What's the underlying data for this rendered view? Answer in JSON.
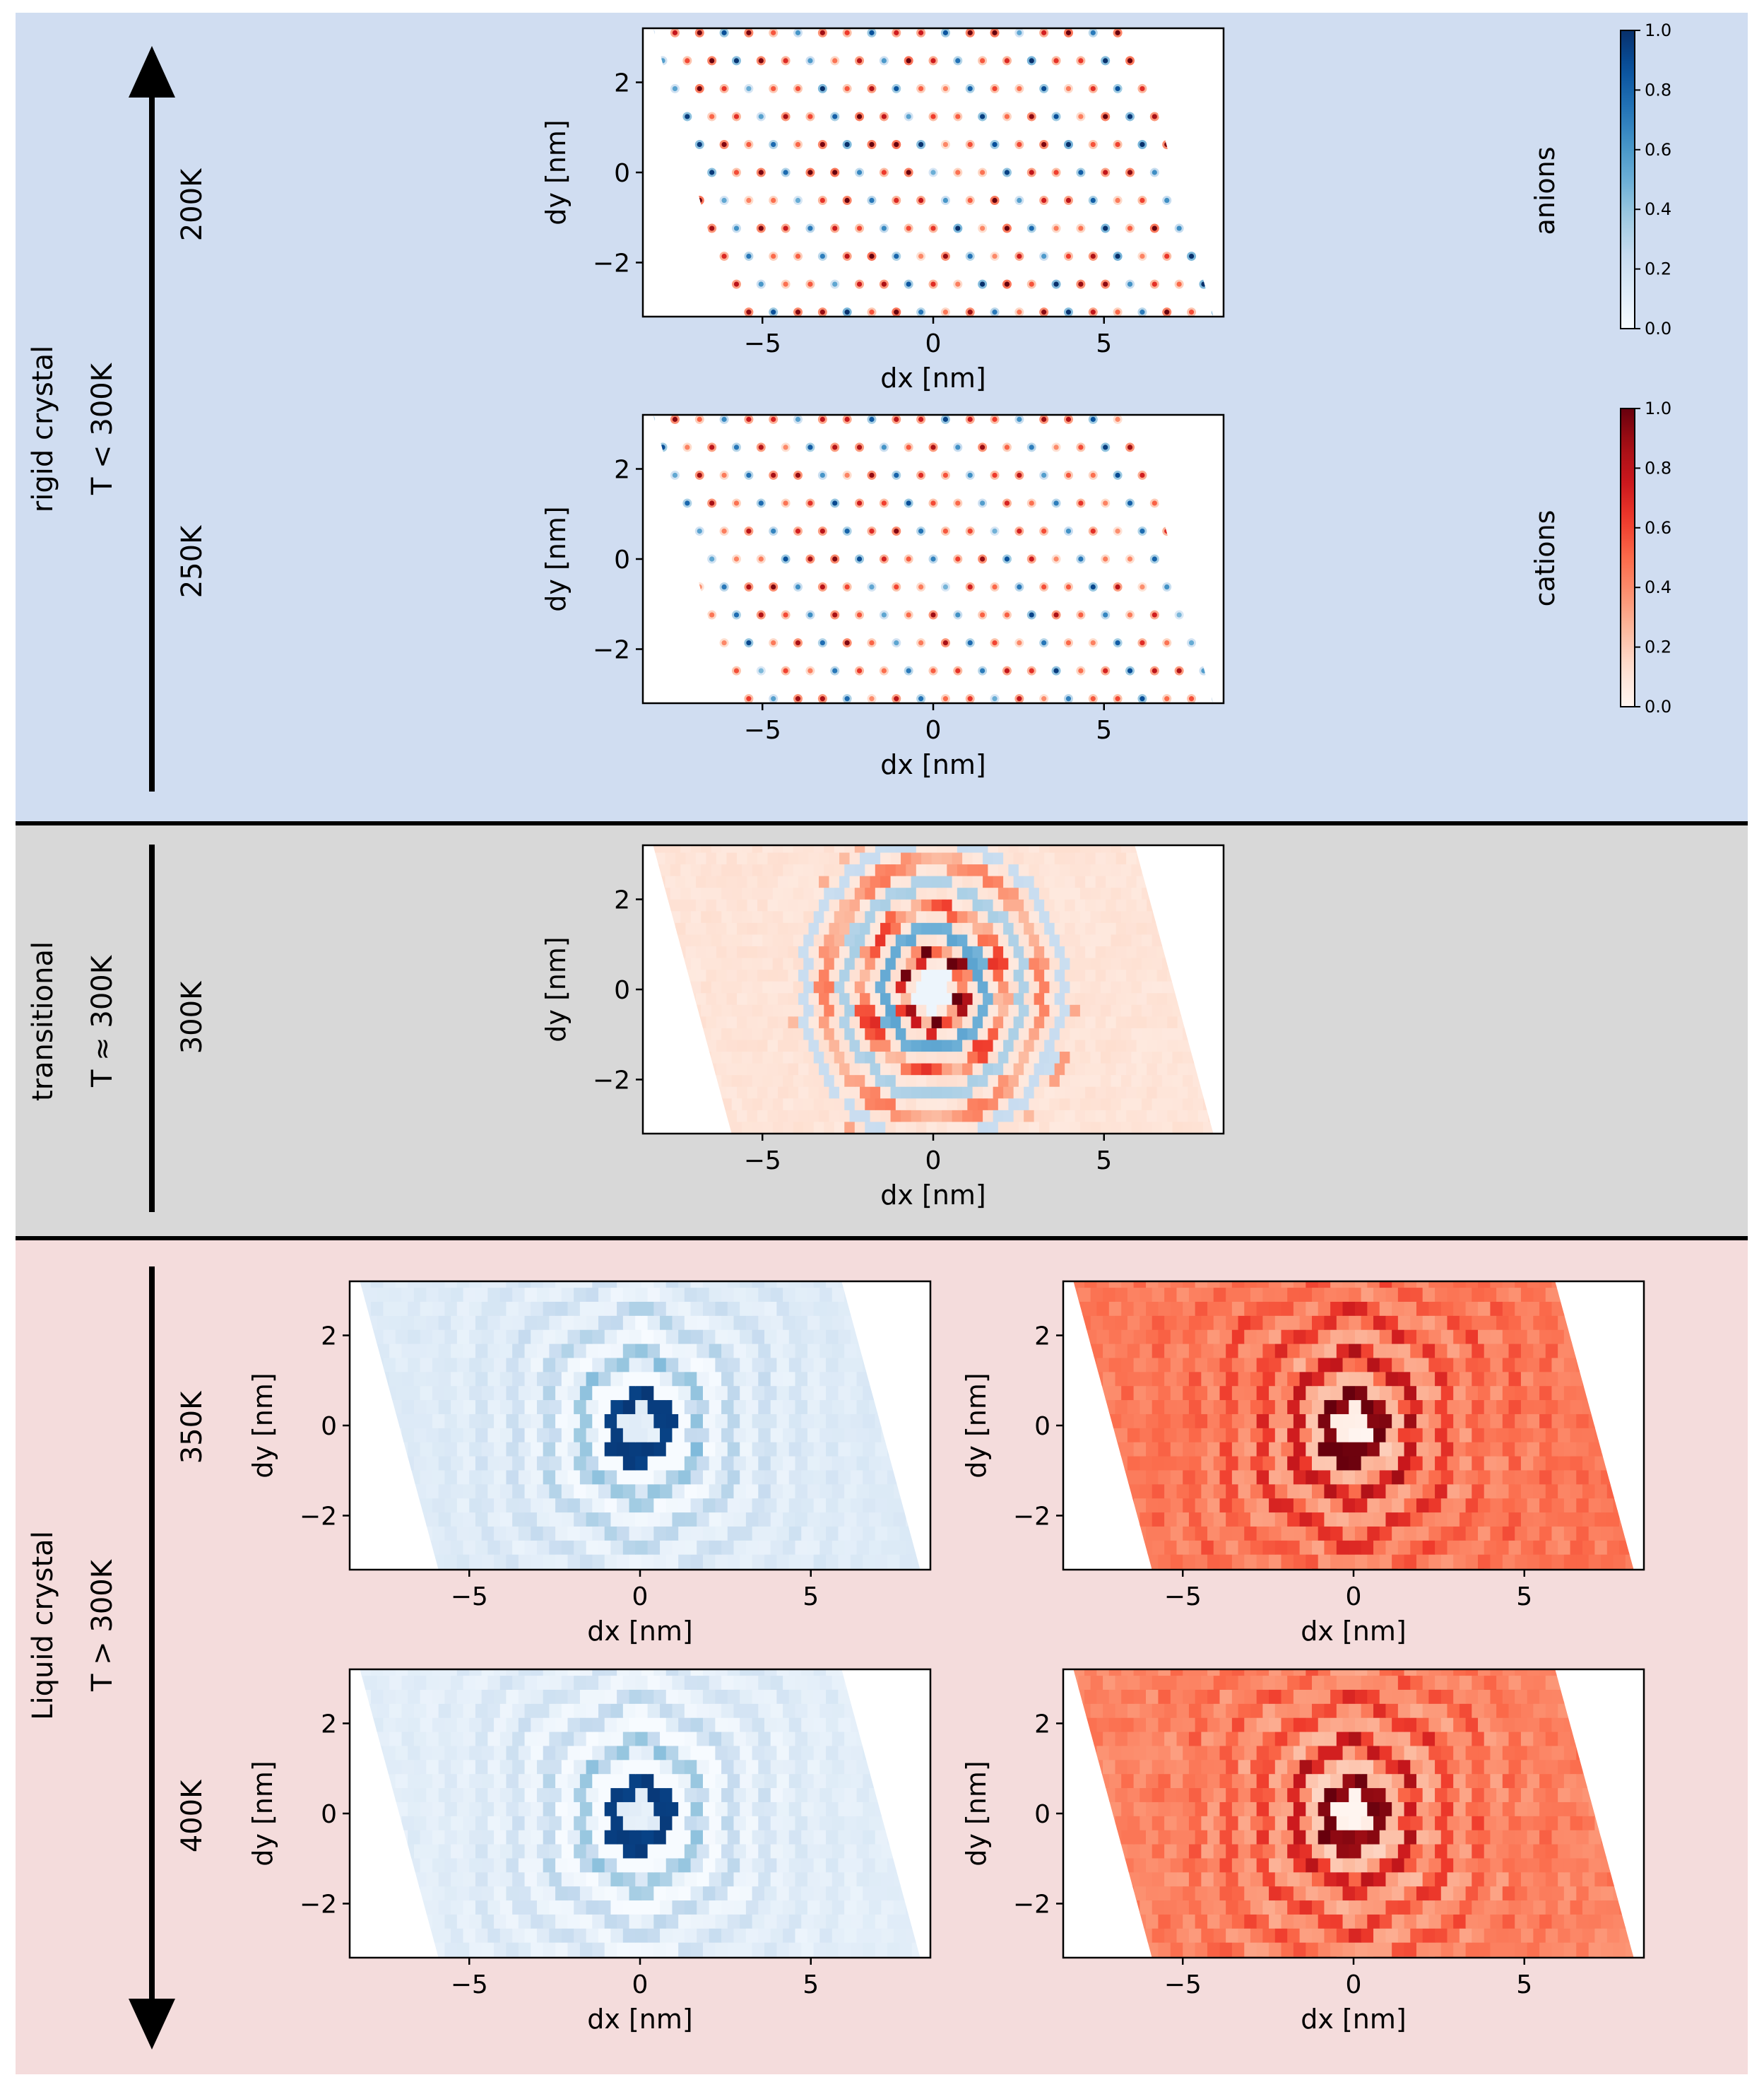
{
  "sections": [
    {
      "key": "rigid",
      "title": "rigid crystal",
      "condition": "T < 300K",
      "bg": "#d0ddf1",
      "arrow": "up"
    },
    {
      "key": "transitional",
      "title": "transitional",
      "condition": "T ≈ 300K",
      "bg": "#d8d8d8",
      "arrow": "none"
    },
    {
      "key": "liquid",
      "title": "Liquid crystal",
      "condition": "T > 300K",
      "bg": "#f4dcdc",
      "arrow": "down"
    }
  ],
  "temperatures": [
    "200K",
    "250K",
    "300K",
    "350K",
    "400K"
  ],
  "colorbars": [
    {
      "label": "anions",
      "colormap": "Blues",
      "ticks": [
        "0.0",
        "0.2",
        "0.4",
        "0.6",
        "0.8",
        "1.0"
      ]
    },
    {
      "label": "cations",
      "colormap": "Reds",
      "ticks": [
        "0.0",
        "0.2",
        "0.4",
        "0.6",
        "0.8",
        "1.0"
      ]
    }
  ],
  "chart_data": [
    {
      "type": "heatmap",
      "temperature": "200K",
      "species": "anions + cations",
      "pattern": "crystal",
      "xlabel": "dx [nm]",
      "ylabel": "dy [nm]",
      "xlim": [
        -8.5,
        8.5
      ],
      "ylim": [
        -3.2,
        3.2
      ],
      "xticks": [
        "−5",
        "0",
        "5"
      ],
      "yticks": [
        "2",
        "0",
        "−2"
      ]
    },
    {
      "type": "heatmap",
      "temperature": "250K",
      "species": "anions + cations",
      "pattern": "crystal",
      "xlabel": "dx [nm]",
      "ylabel": "dy [nm]",
      "xlim": [
        -8.5,
        8.5
      ],
      "ylim": [
        -3.2,
        3.2
      ],
      "xticks": [
        "−5",
        "0",
        "5"
      ],
      "yticks": [
        "2",
        "0",
        "−2"
      ]
    },
    {
      "type": "heatmap",
      "temperature": "300K",
      "species": "anions + cations",
      "pattern": "transitional",
      "xlabel": "dx [nm]",
      "ylabel": "dy [nm]",
      "xlim": [
        -8.5,
        8.5
      ],
      "ylim": [
        -3.2,
        3.2
      ],
      "xticks": [
        "−5",
        "0",
        "5"
      ],
      "yticks": [
        "2",
        "0",
        "−2"
      ]
    },
    {
      "type": "heatmap",
      "temperature": "350K",
      "species": "anions",
      "pattern": "liquid",
      "xlabel": "dx [nm]",
      "ylabel": "dy [nm]",
      "xlim": [
        -8.5,
        8.5
      ],
      "ylim": [
        -3.2,
        3.2
      ],
      "xticks": [
        "−5",
        "0",
        "5"
      ],
      "yticks": [
        "2",
        "0",
        "−2"
      ]
    },
    {
      "type": "heatmap",
      "temperature": "350K",
      "species": "cations",
      "pattern": "liquid",
      "xlabel": "dx [nm]",
      "ylabel": "dy [nm]",
      "xlim": [
        -8.5,
        8.5
      ],
      "ylim": [
        -3.2,
        3.2
      ],
      "xticks": [
        "−5",
        "0",
        "5"
      ],
      "yticks": [
        "2",
        "0",
        "−2"
      ]
    },
    {
      "type": "heatmap",
      "temperature": "400K",
      "species": "anions",
      "pattern": "liquid",
      "xlabel": "dx [nm]",
      "ylabel": "dy [nm]",
      "xlim": [
        -8.5,
        8.5
      ],
      "ylim": [
        -3.2,
        3.2
      ],
      "xticks": [
        "−5",
        "0",
        "5"
      ],
      "yticks": [
        "2",
        "0",
        "−2"
      ]
    },
    {
      "type": "heatmap",
      "temperature": "400K",
      "species": "cations",
      "pattern": "liquid",
      "xlabel": "dx [nm]",
      "ylabel": "dy [nm]",
      "xlim": [
        -8.5,
        8.5
      ],
      "ylim": [
        -3.2,
        3.2
      ],
      "xticks": [
        "−5",
        "0",
        "5"
      ],
      "yticks": [
        "2",
        "0",
        "−2"
      ]
    }
  ]
}
